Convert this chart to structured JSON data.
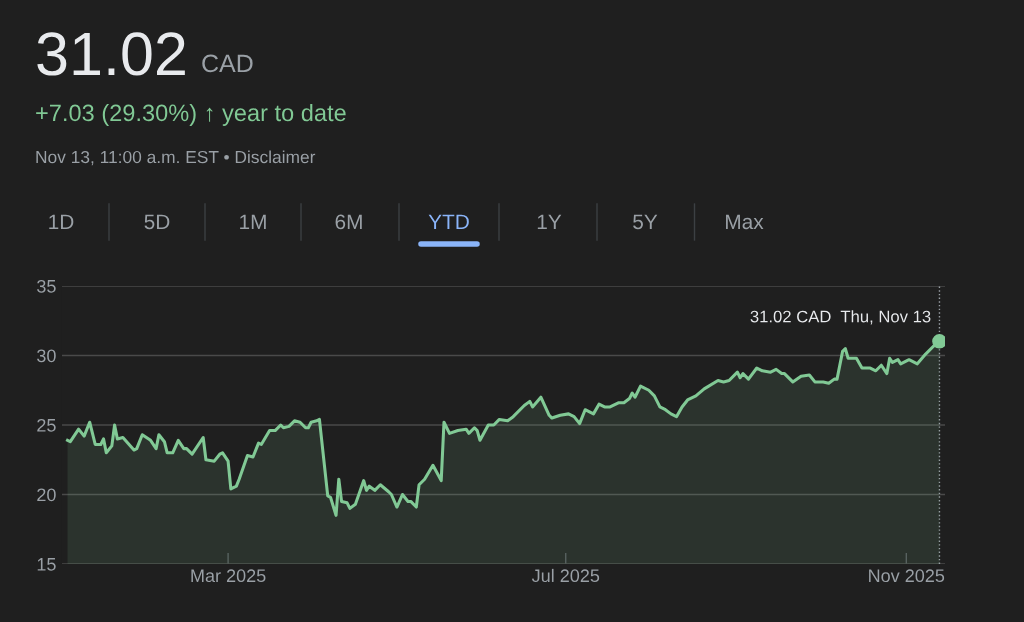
{
  "chart_data": {
    "type": "area",
    "title": "31.02",
    "subtitle": "+7.03 (29.30%) ↑ year to date",
    "annotations": [
      "CAD",
      "Nov 13, 11:00 a.m. EST • Disclaimer",
      "1D",
      "5D",
      "1M",
      "6M",
      "YTD",
      "1Y",
      "5Y",
      "Max"
    ],
    "series": [
      {
        "color": "#81c995",
        "x": [
          "2025-01-02",
          "2025-01-03",
          "2025-01-06",
          "2025-01-08",
          "2025-01-10",
          "2025-01-12",
          "2025-01-14",
          "2025-01-15",
          "2025-01-16",
          "2025-01-18",
          "2025-01-19",
          "2025-01-20",
          "2025-01-22",
          "2025-01-26",
          "2025-01-27",
          "2025-01-29",
          "2025-02-01",
          "2025-02-03",
          "2025-02-04",
          "2025-02-06",
          "2025-02-07",
          "2025-02-09",
          "2025-02-11",
          "2025-02-13",
          "2025-02-14",
          "2025-02-16",
          "2025-02-20",
          "2025-02-21",
          "2025-02-24",
          "2025-02-26",
          "2025-02-27",
          "2025-03-01",
          "2025-03-02",
          "2025-03-04",
          "2025-03-05",
          "2025-03-08",
          "2025-03-10",
          "2025-03-12",
          "2025-03-13",
          "2025-03-16",
          "2025-03-18",
          "2025-03-20",
          "2025-03-21",
          "2025-03-23",
          "2025-03-25",
          "2025-03-27",
          "2025-03-29",
          "2025-03-30",
          "2025-03-31",
          "2025-04-02",
          "2025-04-03",
          "2025-04-06",
          "2025-04-07",
          "2025-04-09",
          "2025-04-10",
          "2025-04-11",
          "2025-04-13",
          "2025-04-14",
          "2025-04-16",
          "2025-04-19",
          "2025-04-20",
          "2025-04-21",
          "2025-04-23",
          "2025-04-25",
          "2025-04-28",
          "2025-04-29",
          "2025-05-01",
          "2025-05-03",
          "2025-05-05",
          "2025-05-06",
          "2025-05-08",
          "2025-05-09",
          "2025-05-11",
          "2025-05-14",
          "2025-05-17",
          "2025-05-18",
          "2025-05-20",
          "2025-05-23",
          "2025-05-26",
          "2025-05-27",
          "2025-05-29",
          "2025-05-30",
          "2025-05-31",
          "2025-06-03",
          "2025-06-05",
          "2025-06-07",
          "2025-06-10",
          "2025-06-12",
          "2025-06-16",
          "2025-06-18",
          "2025-06-19",
          "2025-06-22",
          "2025-06-25",
          "2025-06-26",
          "2025-06-29",
          "2025-07-02",
          "2025-07-04",
          "2025-07-06",
          "2025-07-08",
          "2025-07-11",
          "2025-07-13",
          "2025-07-15",
          "2025-07-17",
          "2025-07-20",
          "2025-07-22",
          "2025-07-24",
          "2025-07-25",
          "2025-07-26",
          "2025-07-28",
          "2025-07-31",
          "2025-08-02",
          "2025-08-04",
          "2025-08-06",
          "2025-08-08",
          "2025-08-10",
          "2025-08-12",
          "2025-08-14",
          "2025-08-17",
          "2025-08-20",
          "2025-08-25",
          "2025-08-27",
          "2025-08-29",
          "2025-09-01",
          "2025-09-02",
          "2025-09-03",
          "2025-09-05",
          "2025-09-08",
          "2025-09-10",
          "2025-09-13",
          "2025-09-15",
          "2025-09-17",
          "2025-09-18",
          "2025-09-21",
          "2025-09-24",
          "2025-09-27",
          "2025-09-29",
          "2025-10-02",
          "2025-10-04",
          "2025-10-06",
          "2025-10-07",
          "2025-10-09",
          "2025-10-10",
          "2025-10-11",
          "2025-10-14",
          "2025-10-16",
          "2025-10-19",
          "2025-10-21",
          "2025-10-23",
          "2025-10-25",
          "2025-10-26",
          "2025-10-27",
          "2025-10-29",
          "2025-10-30",
          "2025-11-02",
          "2025-11-05",
          "2025-11-08",
          "2025-11-11",
          "2025-11-12",
          "2025-11-13"
        ],
        "values": [
          23.9,
          23.8,
          24.7,
          24.2,
          25.2,
          23.6,
          23.6,
          24.0,
          23.0,
          23.5,
          25.0,
          24.0,
          24.1,
          23.2,
          23.3,
          24.3,
          23.9,
          23.3,
          24.3,
          23.8,
          23.0,
          23.0,
          23.9,
          23.3,
          23.3,
          22.9,
          24.1,
          22.5,
          22.4,
          22.9,
          23.0,
          22.4,
          20.4,
          20.6,
          21.1,
          22.8,
          22.7,
          23.7,
          23.6,
          24.6,
          24.6,
          25.0,
          24.8,
          24.9,
          25.3,
          25.2,
          24.8,
          24.8,
          25.2,
          25.3,
          25.4,
          19.9,
          19.8,
          18.5,
          21.1,
          19.5,
          19.4,
          19.0,
          19.3,
          21.0,
          20.3,
          20.6,
          20.3,
          20.7,
          20.2,
          20.0,
          19.1,
          20.0,
          19.5,
          19.5,
          19.1,
          20.7,
          21.1,
          22.1,
          21.0,
          25.2,
          24.4,
          24.6,
          24.7,
          24.4,
          24.8,
          24.6,
          23.9,
          25.0,
          25.0,
          25.4,
          25.3,
          25.6,
          26.4,
          26.7,
          26.3,
          27.0,
          25.7,
          25.5,
          25.7,
          25.8,
          25.6,
          25.1,
          26.1,
          25.8,
          26.5,
          26.3,
          26.3,
          26.6,
          26.6,
          26.9,
          27.3,
          27.0,
          27.8,
          27.5,
          27.1,
          26.3,
          26.1,
          25.8,
          25.6,
          26.3,
          26.8,
          27.1,
          27.6,
          28.2,
          28.1,
          28.2,
          28.8,
          28.4,
          28.7,
          28.3,
          29.1,
          28.9,
          28.8,
          29.0,
          28.7,
          28.7,
          28.1,
          28.5,
          28.6,
          28.1,
          28.1,
          28.0,
          28.3,
          28.3,
          30.3,
          30.5,
          29.8,
          29.8,
          29.1,
          29.1,
          28.9,
          29.3,
          28.7,
          29.8,
          29.5,
          29.7,
          29.4,
          29.7,
          29.4,
          30.1,
          30.7,
          30.7,
          31.02
        ]
      },
      {
        "type": "scatter",
        "color": "#81c995",
        "marker": "circle",
        "x": [
          "2025-11-13"
        ],
        "values": [
          31.02
        ]
      }
    ],
    "ref_lines": [
      {
        "axis": "x",
        "value": "2025-11-13",
        "label": "31.02 CAD  Thu, Nov 13",
        "color": "#9aa0a6",
        "line_style": "dotted"
      }
    ],
    "xlim": [
      "2024-12-31",
      "2025-11-15"
    ],
    "xticks": [
      {
        "value": "2025-03-01",
        "label": "Mar 2025"
      },
      {
        "value": "2025-07-01",
        "label": "Jul 2025"
      },
      {
        "value": "2025-11-01",
        "label": "Nov 2025"
      }
    ],
    "ylim": [
      15,
      35
    ],
    "yticks": [
      15,
      20,
      25,
      30,
      35
    ],
    "grid": "y",
    "legend": false
  }
}
